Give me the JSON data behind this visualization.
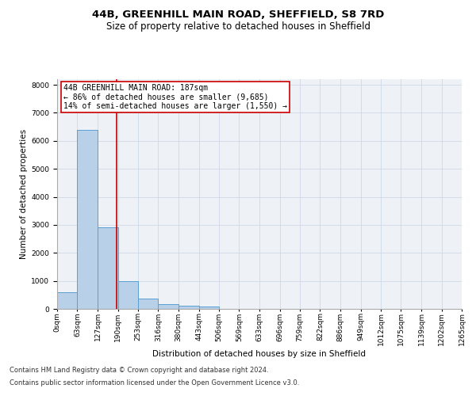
{
  "title1": "44B, GREENHILL MAIN ROAD, SHEFFIELD, S8 7RD",
  "title2": "Size of property relative to detached houses in Sheffield",
  "xlabel": "Distribution of detached houses by size in Sheffield",
  "ylabel": "Number of detached properties",
  "annotation_line1": "44B GREENHILL MAIN ROAD: 187sqm",
  "annotation_line2": "← 86% of detached houses are smaller (9,685)",
  "annotation_line3": "14% of semi-detached houses are larger (1,550) →",
  "footnote1": "Contains HM Land Registry data © Crown copyright and database right 2024.",
  "footnote2": "Contains public sector information licensed under the Open Government Licence v3.0.",
  "property_size_sqm": 187,
  "bin_width": 63,
  "bin_starts": [
    0,
    63,
    127,
    190,
    253,
    316,
    380,
    443,
    506,
    569,
    633,
    696,
    759,
    822,
    886,
    949,
    1012,
    1075,
    1139,
    1202
  ],
  "bin_labels": [
    "0sqm",
    "63sqm",
    "127sqm",
    "190sqm",
    "253sqm",
    "316sqm",
    "380sqm",
    "443sqm",
    "506sqm",
    "569sqm",
    "633sqm",
    "696sqm",
    "759sqm",
    "822sqm",
    "886sqm",
    "949sqm",
    "1012sqm",
    "1075sqm",
    "1139sqm",
    "1202sqm",
    "1265sqm"
  ],
  "bar_values": [
    600,
    6400,
    2900,
    1000,
    380,
    160,
    100,
    80,
    0,
    0,
    0,
    0,
    0,
    0,
    0,
    0,
    0,
    0,
    0,
    0
  ],
  "bar_color": "#b8d0e8",
  "bar_edge_color": "#5a9fd4",
  "grid_color": "#d0d8e8",
  "background_color": "#eef2f7",
  "vline_color": "#cc0000",
  "vline_x": 187,
  "annotation_box_color": "#cc0000",
  "ylim": [
    0,
    8200
  ],
  "yticks": [
    0,
    1000,
    2000,
    3000,
    4000,
    5000,
    6000,
    7000,
    8000
  ],
  "title_fontsize": 9.5,
  "subtitle_fontsize": 8.5,
  "axis_label_fontsize": 7.5,
  "tick_fontsize": 6.5,
  "annotation_fontsize": 7.0,
  "footnote_fontsize": 6.0
}
